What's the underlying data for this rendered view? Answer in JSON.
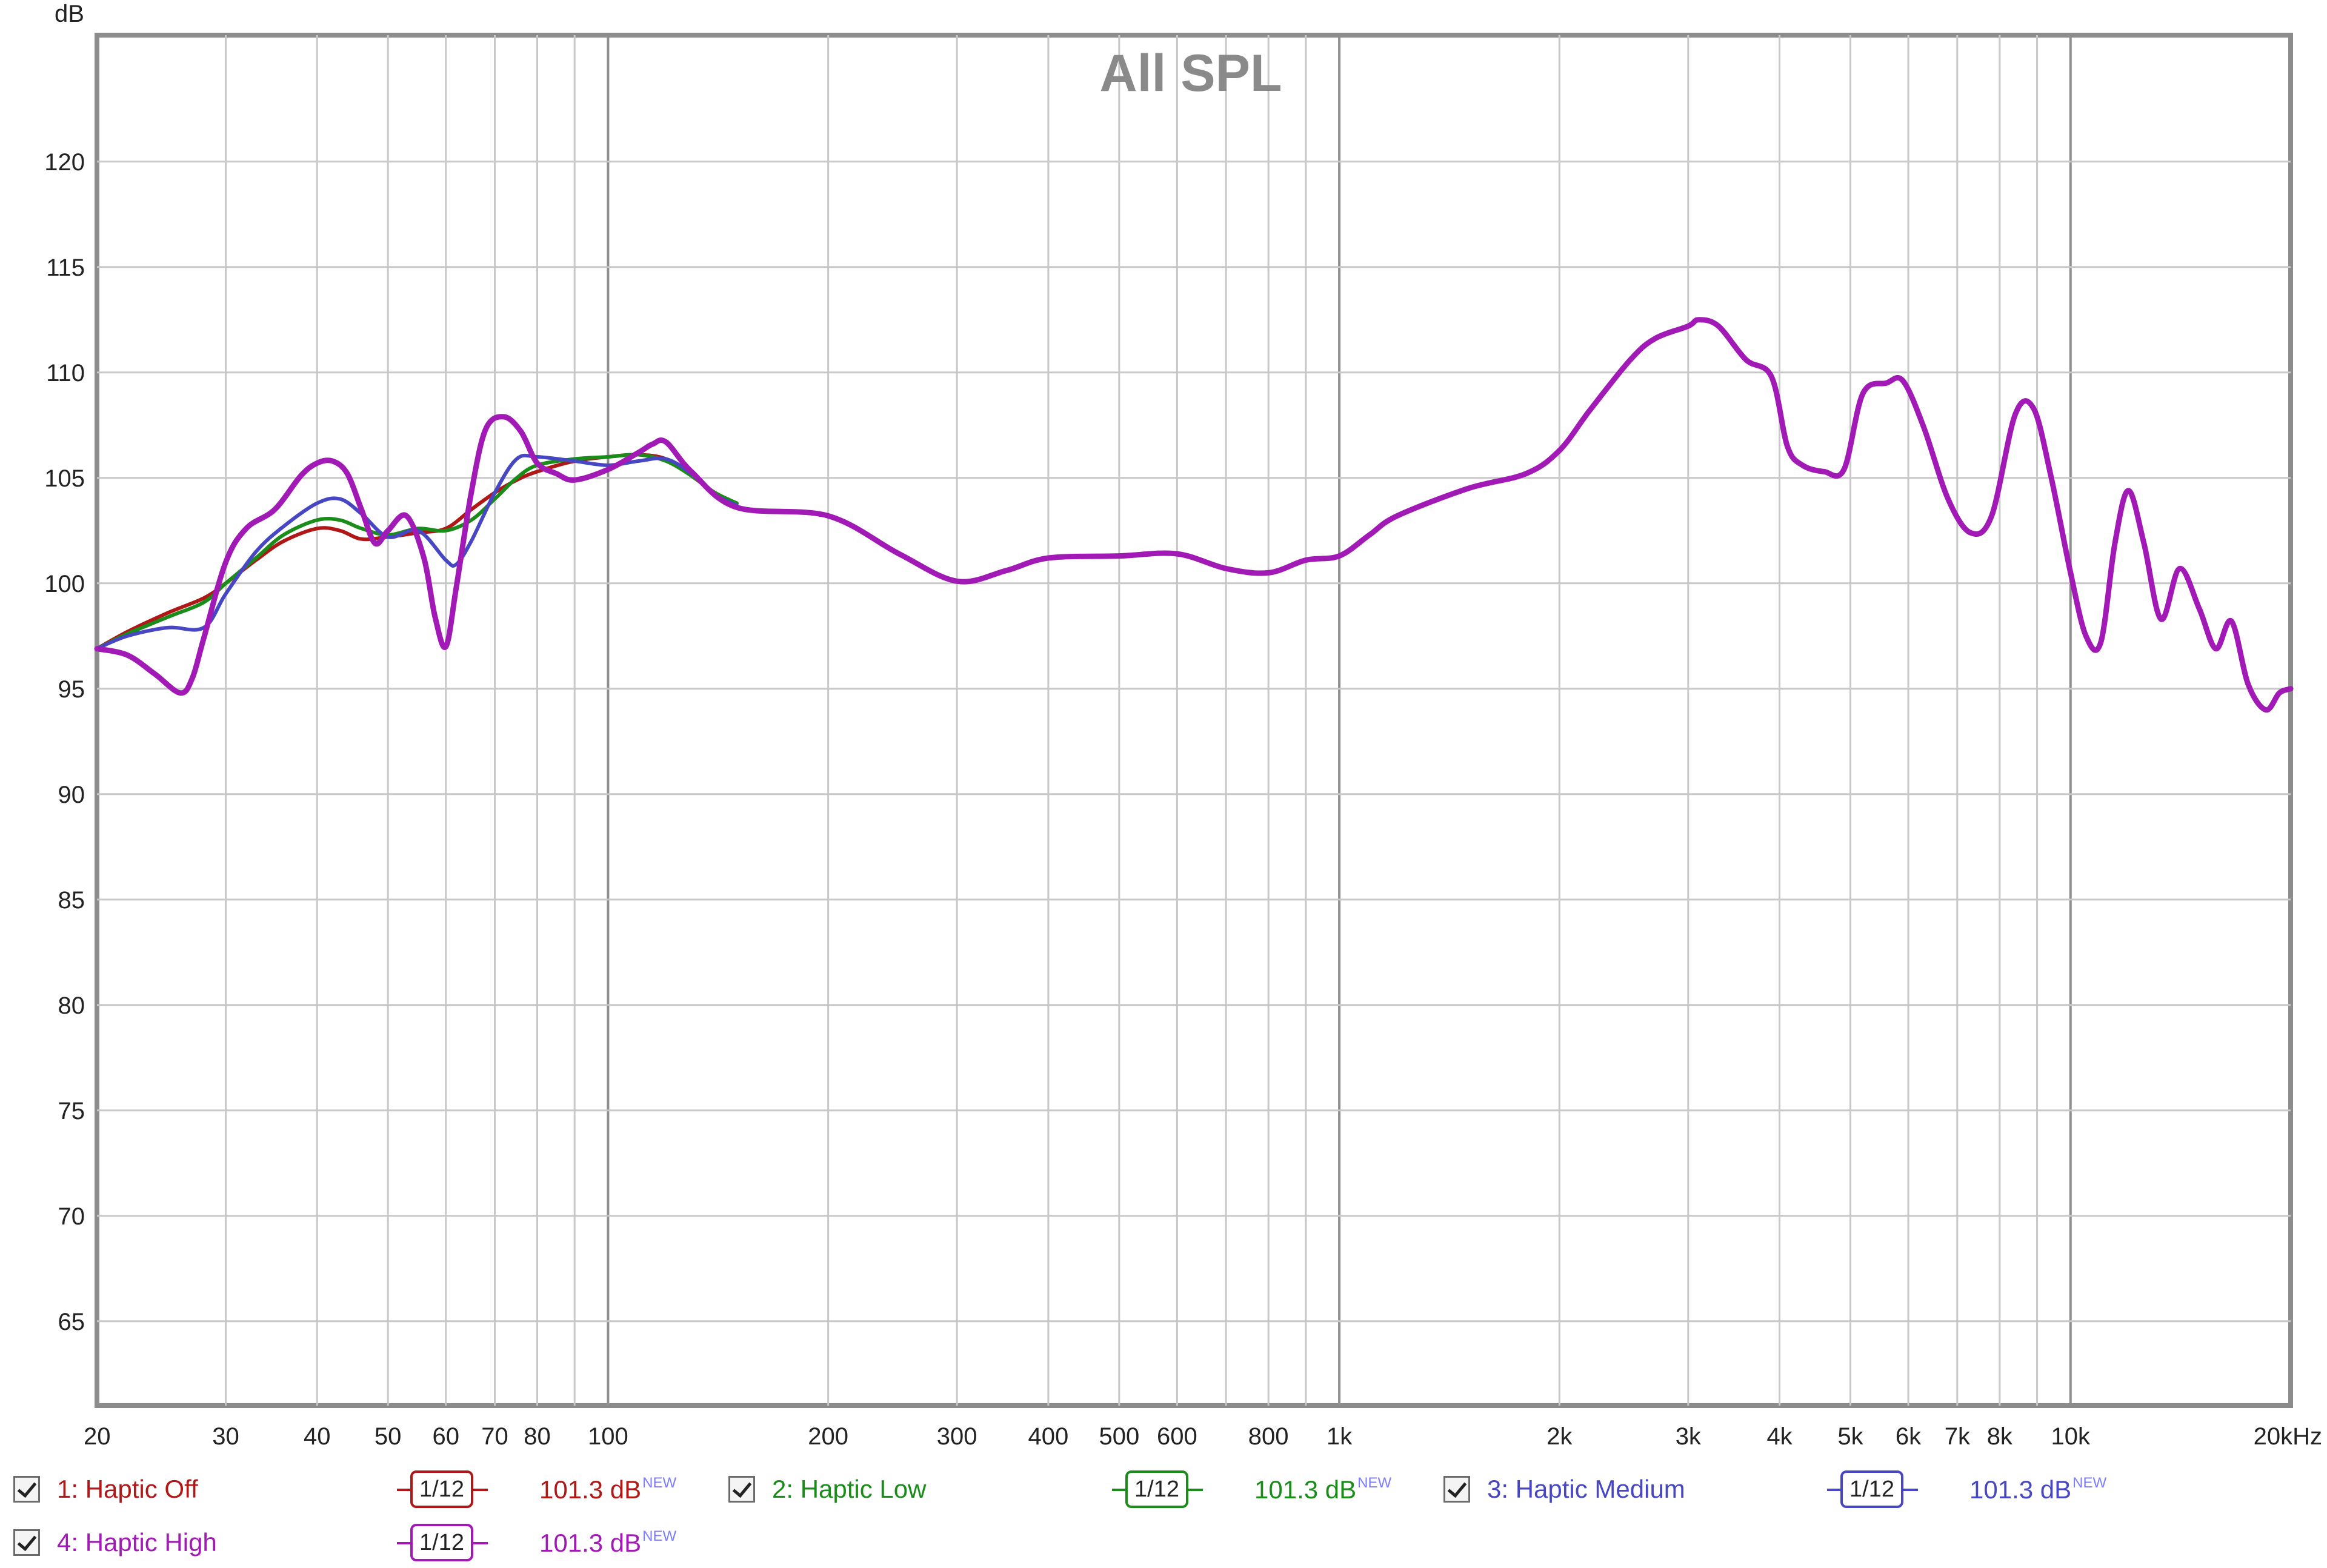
{
  "chart_data": {
    "type": "line",
    "title": "All SPL",
    "ylabel": "dB",
    "xscale": "log",
    "xlim": [
      20,
      20000
    ],
    "ylim": [
      61,
      126
    ],
    "grid": true,
    "yticks": [
      65,
      70,
      75,
      80,
      85,
      90,
      95,
      100,
      105,
      110,
      115,
      120
    ],
    "xticks": [
      {
        "v": 20,
        "label": "20"
      },
      {
        "v": 30,
        "label": "30"
      },
      {
        "v": 40,
        "label": "40"
      },
      {
        "v": 50,
        "label": "50"
      },
      {
        "v": 60,
        "label": "60"
      },
      {
        "v": 70,
        "label": "70"
      },
      {
        "v": 80,
        "label": "80"
      },
      {
        "v": 100,
        "label": "100"
      },
      {
        "v": 200,
        "label": "200"
      },
      {
        "v": 300,
        "label": "300"
      },
      {
        "v": 400,
        "label": "400"
      },
      {
        "v": 500,
        "label": "500"
      },
      {
        "v": 600,
        "label": "600"
      },
      {
        "v": 800,
        "label": "800"
      },
      {
        "v": 1000,
        "label": "1k"
      },
      {
        "v": 2000,
        "label": "2k"
      },
      {
        "v": 3000,
        "label": "3k"
      },
      {
        "v": 4000,
        "label": "4k"
      },
      {
        "v": 5000,
        "label": "5k"
      },
      {
        "v": 6000,
        "label": "6k"
      },
      {
        "v": 7000,
        "label": "7k"
      },
      {
        "v": 8000,
        "label": "8k"
      },
      {
        "v": 10000,
        "label": "10k"
      },
      {
        "v": 20000,
        "label": "20kHz"
      }
    ],
    "series": [
      {
        "name": "1: Haptic Off",
        "color": "#b01818",
        "x": [
          20,
          22,
          25,
          28,
          30,
          33,
          36,
          40,
          43,
          46,
          50,
          55,
          60,
          65,
          70,
          75,
          80,
          90,
          100,
          110,
          120,
          130,
          140,
          150
        ],
        "y": [
          96.9,
          97.7,
          98.6,
          99.3,
          100.0,
          101.1,
          102.0,
          102.6,
          102.5,
          102.1,
          102.2,
          102.4,
          102.6,
          103.5,
          104.3,
          104.9,
          105.3,
          105.8,
          106.0,
          106.1,
          105.9,
          105.1,
          104.3,
          103.8
        ]
      },
      {
        "name": "2: Haptic Low",
        "color": "#1a8c1a",
        "x": [
          20,
          22,
          25,
          28,
          30,
          33,
          36,
          40,
          43,
          46,
          50,
          55,
          60,
          65,
          70,
          75,
          80,
          90,
          100,
          110,
          120,
          130,
          140,
          150
        ],
        "y": [
          96.9,
          97.6,
          98.4,
          99.1,
          100.0,
          101.2,
          102.3,
          103.0,
          103.0,
          102.6,
          102.3,
          102.6,
          102.5,
          103.0,
          104.0,
          105.0,
          105.6,
          105.9,
          106.0,
          106.1,
          105.8,
          105.1,
          104.3,
          103.8
        ]
      },
      {
        "name": "3: Haptic Medium",
        "color": "#4747c4",
        "x": [
          20,
          22,
          25,
          28,
          30,
          33,
          36,
          40,
          43,
          46,
          50,
          55,
          60,
          62,
          65,
          70,
          75,
          80,
          90,
          100,
          110,
          120,
          130,
          140,
          150
        ],
        "y": [
          96.9,
          97.5,
          97.9,
          97.9,
          99.5,
          101.5,
          102.7,
          103.8,
          104.0,
          103.3,
          102.2,
          102.5,
          101.1,
          100.9,
          102.0,
          104.3,
          105.9,
          106.0,
          105.8,
          105.6,
          105.8,
          105.9,
          105.2,
          104.2,
          103.7
        ]
      },
      {
        "name": "4: Haptic High",
        "color": "#a21ab5",
        "x": [
          20,
          22,
          24,
          26,
          27,
          28,
          30,
          32,
          35,
          38,
          40,
          42,
          44,
          46,
          48,
          50,
          53,
          56,
          58,
          60,
          62,
          65,
          68,
          72,
          76,
          80,
          85,
          90,
          100,
          110,
          115,
          120,
          130,
          150,
          200,
          250,
          300,
          350,
          400,
          500,
          600,
          700,
          800,
          900,
          1000,
          1100,
          1200,
          1500,
          1800,
          2000,
          2200,
          2500,
          2700,
          3000,
          3100,
          3300,
          3600,
          3900,
          4100,
          4300,
          4600,
          4900,
          5200,
          5600,
          5900,
          6300,
          6800,
          7300,
          7800,
          8400,
          8900,
          9400,
          10000,
          10500,
          11000,
          11500,
          12000,
          12600,
          13300,
          14100,
          15000,
          15800,
          16600,
          17500,
          18500,
          19300,
          20000
        ],
        "y": [
          96.9,
          96.6,
          95.7,
          94.8,
          95.5,
          97.4,
          101.0,
          102.6,
          103.5,
          105.1,
          105.7,
          105.8,
          105.2,
          103.5,
          101.9,
          102.5,
          103.2,
          101.2,
          98.4,
          97.0,
          99.8,
          104.3,
          107.3,
          107.9,
          107.2,
          105.7,
          105.2,
          104.9,
          105.4,
          106.2,
          106.6,
          106.7,
          105.3,
          103.6,
          103.2,
          101.4,
          100.1,
          100.6,
          101.2,
          101.3,
          101.4,
          100.7,
          100.5,
          101.1,
          101.3,
          102.3,
          103.2,
          104.5,
          105.2,
          106.3,
          108.2,
          110.6,
          111.6,
          112.2,
          112.5,
          112.2,
          110.6,
          109.8,
          106.5,
          105.6,
          105.3,
          105.4,
          109.0,
          109.5,
          109.6,
          107.4,
          104.0,
          102.4,
          103.2,
          108.0,
          108.3,
          105.1,
          100.5,
          97.5,
          97.2,
          101.9,
          104.4,
          101.9,
          98.3,
          100.7,
          98.8,
          96.9,
          98.2,
          95.2,
          94.0,
          94.8,
          95.0
        ]
      }
    ]
  },
  "legend": {
    "items": [
      {
        "label": "1: Haptic Off",
        "smoothing": "1/12",
        "level": "101.3 dB",
        "badge": "NEW",
        "color": "#b01818"
      },
      {
        "label": "2: Haptic Low",
        "smoothing": "1/12",
        "level": "101.3 dB",
        "badge": "NEW",
        "color": "#1a8c1a"
      },
      {
        "label": "3: Haptic Medium",
        "smoothing": "1/12",
        "level": "101.3 dB",
        "badge": "NEW",
        "color": "#4747c4"
      },
      {
        "label": "4: Haptic High",
        "smoothing": "1/12",
        "level": "101.3 dB",
        "badge": "NEW",
        "color": "#a21ab5"
      }
    ]
  }
}
